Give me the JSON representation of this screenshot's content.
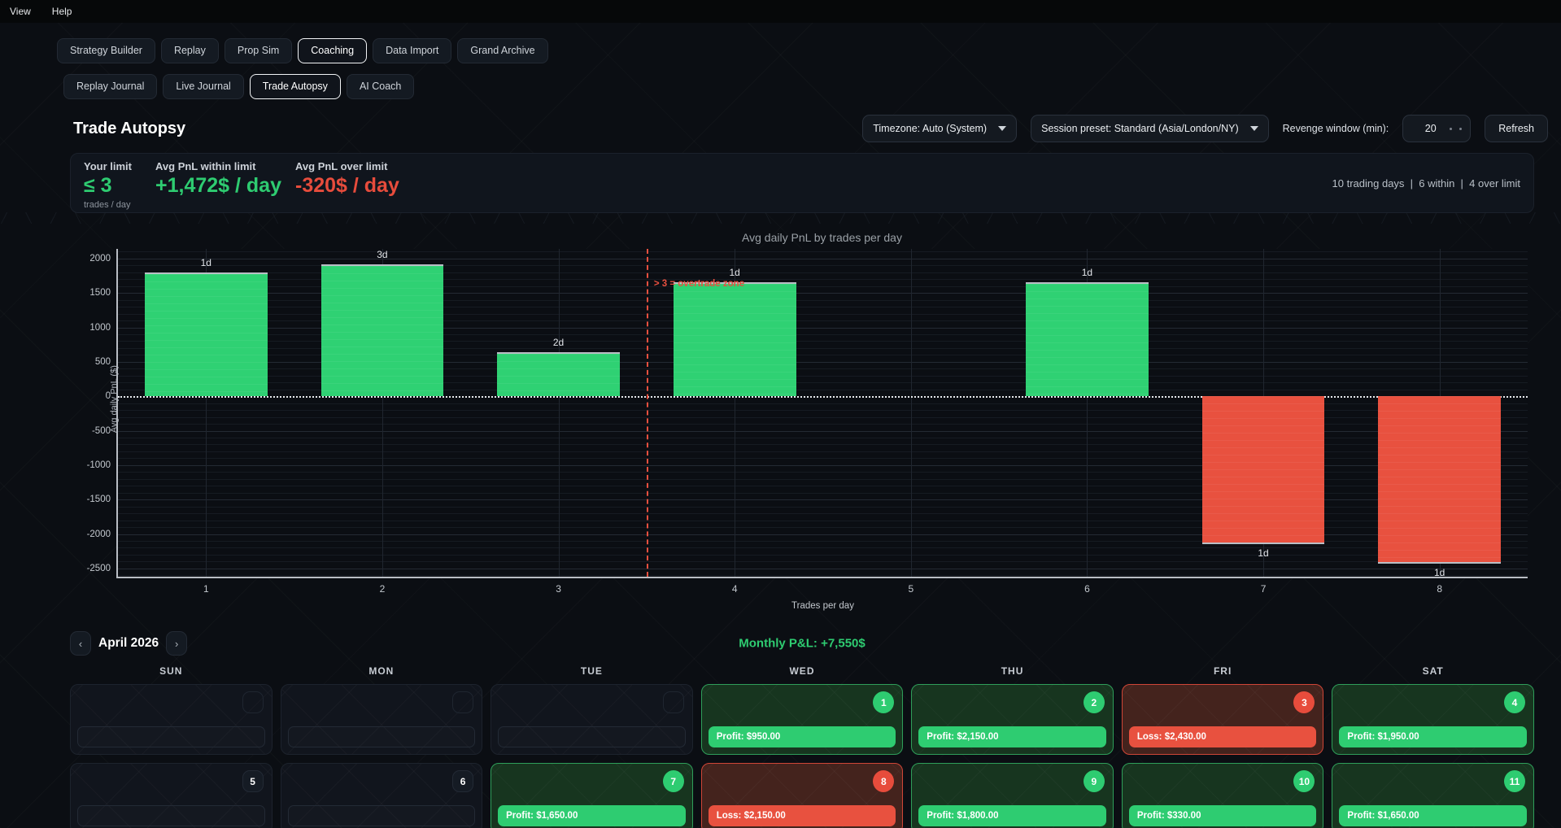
{
  "menu": {
    "items": [
      "View",
      "Help"
    ]
  },
  "tabs": {
    "items": [
      "Strategy Builder",
      "Replay",
      "Prop Sim",
      "Coaching",
      "Data Import",
      "Grand Archive"
    ],
    "active": "Coaching"
  },
  "subtabs": {
    "items": [
      "Replay Journal",
      "Live Journal",
      "Trade Autopsy",
      "AI Coach"
    ],
    "active": "Trade Autopsy"
  },
  "header": {
    "title": "Trade Autopsy",
    "timezone_select": "Timezone: Auto (System)",
    "session_select": "Session preset: Standard (Asia/London/NY)",
    "revenge_label": "Revenge window (min):",
    "revenge_value": "20",
    "refresh_label": "Refresh"
  },
  "stats": {
    "limit_label": "Your limit",
    "limit_value": "≤ 3",
    "limit_sub": "trades / day",
    "within_label": "Avg PnL within limit",
    "within_value": "+1,472$ / day",
    "over_label": "Avg PnL over limit",
    "over_value": "-320$ / day",
    "summary": "10 trading days  |  6 within  |  4 over limit"
  },
  "chart_data": {
    "type": "bar",
    "title": "Avg daily PnL by trades per day",
    "xlabel": "Trades per day",
    "ylabel": "Avg daily PnL ($)",
    "categories": [
      1,
      2,
      3,
      4,
      5,
      6,
      7,
      8
    ],
    "values": [
      1800,
      1917,
      640,
      1650,
      null,
      1650,
      -2150,
      -2430
    ],
    "bar_day_labels": [
      "1d",
      "3d",
      "2d",
      "1d",
      "",
      "1d",
      "1d",
      "1d"
    ],
    "yticks": [
      2000,
      1500,
      1000,
      500,
      0,
      -500,
      -1000,
      -1500,
      -2000,
      -2500
    ],
    "ylim": [
      -2620,
      2140
    ],
    "grid": true,
    "threshold_x": 3.5,
    "threshold_label": "> 3 = overtrade zone",
    "threshold_label_y": 1620,
    "colors": {
      "positive": "#2fd173",
      "negative": "#e8513f",
      "threshold": "#e8503f"
    }
  },
  "calendar": {
    "prev": "‹",
    "next": "›",
    "month_label": "April 2026",
    "monthly_pnl": "Monthly P&L: +7,550$",
    "weekdays": [
      "SUN",
      "MON",
      "TUE",
      "WED",
      "THU",
      "FRI",
      "SAT"
    ],
    "rows": [
      [
        {
          "type": "blank"
        },
        {
          "type": "blank"
        },
        {
          "type": "blank"
        },
        {
          "type": "profit",
          "day": "1",
          "pill": "Profit: $950.00"
        },
        {
          "type": "profit",
          "day": "2",
          "pill": "Profit: $2,150.00"
        },
        {
          "type": "loss",
          "day": "3",
          "pill": "Loss: $2,430.00"
        },
        {
          "type": "profit",
          "day": "4",
          "pill": "Profit: $1,950.00"
        }
      ],
      [
        {
          "type": "empty",
          "day": "5"
        },
        {
          "type": "empty",
          "day": "6"
        },
        {
          "type": "profit",
          "day": "7",
          "pill": "Profit: $1,650.00"
        },
        {
          "type": "loss",
          "day": "8",
          "pill": "Loss: $2,150.00"
        },
        {
          "type": "profit",
          "day": "9",
          "pill": "Profit: $1,800.00"
        },
        {
          "type": "profit",
          "day": "10",
          "pill": "Profit: $330.00"
        },
        {
          "type": "profit",
          "day": "11",
          "pill": "Profit: $1,650.00"
        }
      ]
    ]
  }
}
